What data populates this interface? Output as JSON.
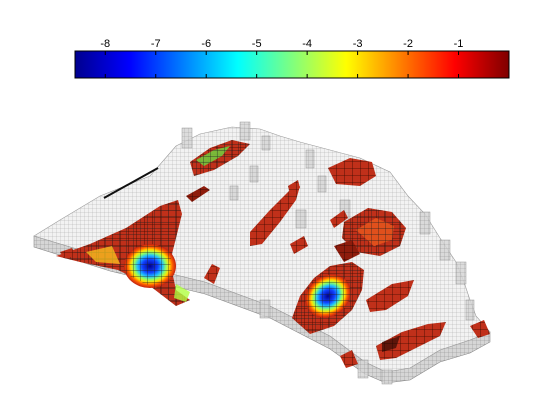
{
  "chart_data": {
    "type": "heatmap",
    "title": "",
    "colorbar": {
      "colormap": "jet",
      "orientation": "horizontal",
      "placement": "top",
      "tick_labels": [
        "-8",
        "-7",
        "-6",
        "-5",
        "-4",
        "-3",
        "-2",
        "-1"
      ],
      "tick_values": [
        -8,
        -7,
        -6,
        -5,
        -4,
        -3,
        -2,
        -1
      ],
      "range": [
        -8.6,
        0
      ]
    },
    "surface": {
      "description_kind": "3D gridded reservoir model with colored cell patches",
      "inactive_color": "#f0f0f0",
      "mesh_color": "#9a9a9a"
    }
  }
}
